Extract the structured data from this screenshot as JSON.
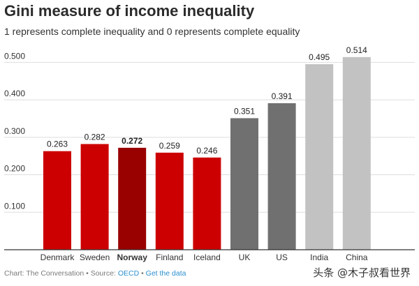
{
  "chart_data": {
    "type": "bar",
    "title": "Gini measure of income inequality",
    "subtitle": "1 represents complete inequality and 0 represents complete equality",
    "categories": [
      "Denmark",
      "Sweden",
      "Norway",
      "Finland",
      "Iceland",
      "UK",
      "US",
      "India",
      "China"
    ],
    "values": [
      0.263,
      0.282,
      0.272,
      0.259,
      0.246,
      0.351,
      0.391,
      0.495,
      0.514
    ],
    "value_labels": [
      "0.263",
      "0.282",
      "0.272",
      "0.259",
      "0.246",
      "0.351",
      "0.391",
      "0.495",
      "0.514"
    ],
    "highlight_category": "Norway",
    "bar_colors": [
      "#cc0000",
      "#cc0000",
      "#990000",
      "#cc0000",
      "#cc0000",
      "#707070",
      "#707070",
      "#c2c2c2",
      "#c2c2c2"
    ],
    "ylim": [
      0,
      0.55
    ],
    "yticks": [
      0.1,
      0.2,
      0.3,
      0.4,
      0.5
    ],
    "ytick_labels": [
      "0.100",
      "0.200",
      "0.300",
      "0.400",
      "0.500"
    ],
    "grid": true,
    "xlabel": "",
    "ylabel": ""
  },
  "footer": {
    "prefix": "Chart: The Conversation • Source: ",
    "source_link": "OECD",
    "separator": " • ",
    "data_link": "Get the data"
  },
  "watermark": "头条 @木子叔看世界",
  "colors": {
    "grid": "#dddddd",
    "axis": "#333333",
    "tick_text": "#333333",
    "link": "#2a8fcf"
  }
}
